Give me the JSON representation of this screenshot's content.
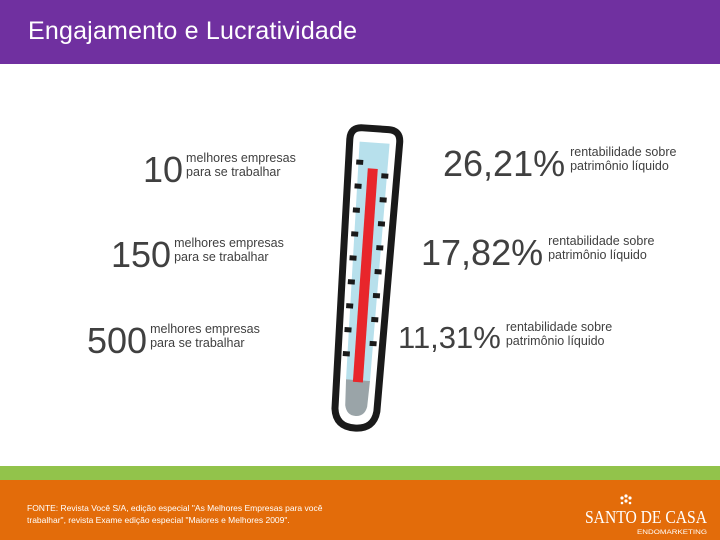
{
  "header": {
    "title": "Engajamento e Lucratividade"
  },
  "left_stats": [
    {
      "number": "10",
      "line1": "melhores empresas",
      "line2": "para se trabalhar"
    },
    {
      "number": "150",
      "line1": "melhores empresas",
      "line2": "para se trabalhar"
    },
    {
      "number": "500",
      "line1": "melhores empresas",
      "line2": "para se trabalhar"
    }
  ],
  "right_stats": [
    {
      "value": "26,21%",
      "line1": "rentabilidade sobre",
      "line2": "patrimônio líquido"
    },
    {
      "value": "17,82%",
      "line1": "rentabilidade sobre",
      "line2": "patrimônio líquido"
    },
    {
      "value": "11,31%",
      "line1": "rentabilidade sobre",
      "line2": "patrimônio líquido"
    }
  ],
  "footer": {
    "source": "FONTE: Revista Você S/A, edição especial \"As Melhores Empresas para você trabalhar\", revista Exame edição especial \"Maiores e Melhores 2009\".",
    "logo_text": "SANTO DE CASA",
    "logo_tagline": "ENDOMARKETING"
  },
  "colors": {
    "header": "#7030a0",
    "footer": "#e36c0a",
    "footer_strip": "#92c34b",
    "thermometer_fill": "#e8262b",
    "thermometer_glass": "#b7e0ec"
  },
  "icons": [
    "thermometer-icon",
    "santo-de-casa-logo"
  ]
}
